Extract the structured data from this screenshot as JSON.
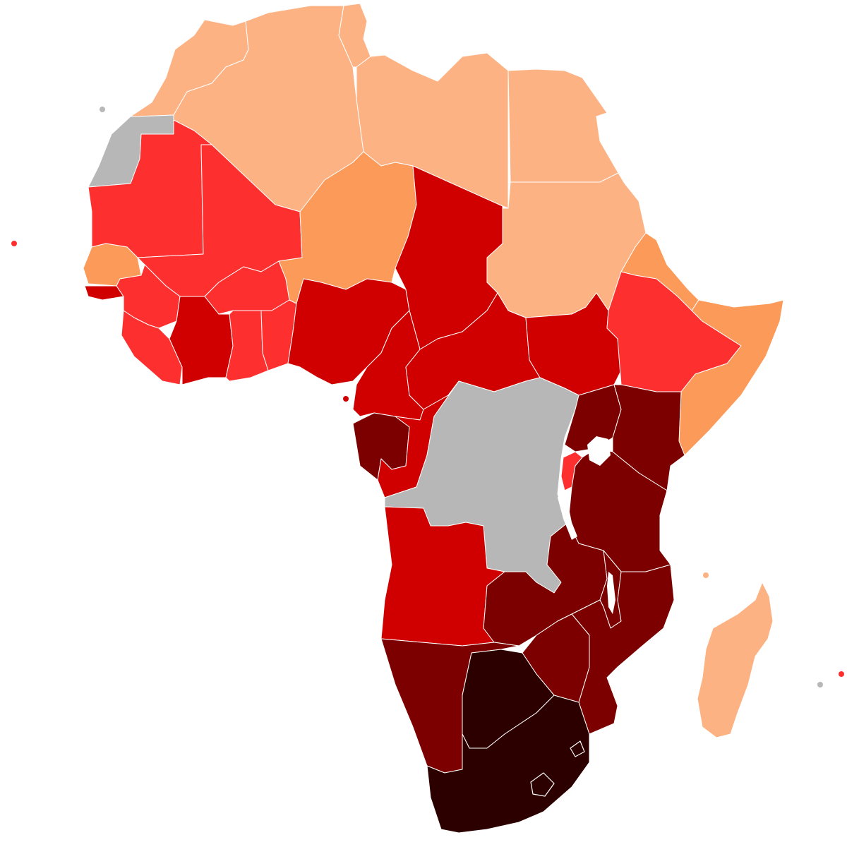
{
  "map": {
    "title": "",
    "region": "Africa",
    "legend": [],
    "palette": {
      "very_low": "#fdb283",
      "low": "#fc9a5a",
      "medium": "#fe2f2f",
      "high": "#d00000",
      "very_high": "#7d0000",
      "highest": "#2d0000",
      "no_data": "#b7b7b7",
      "water": "#ffffff"
    },
    "categories": {
      "morocco": "very_low",
      "algeria": "very_low",
      "tunisia": "very_low",
      "libya": "very_low",
      "egypt": "very_low",
      "sudan": "very_low",
      "madagascar": "very_low",
      "niger": "low",
      "senegal": "low",
      "eritrea": "low",
      "somalia": "low",
      "mauritania": "medium",
      "mali": "medium",
      "burkina-faso": "medium",
      "guinea": "medium",
      "sierra-leone-liberia": "medium",
      "ghana": "medium",
      "togo-benin": "medium",
      "ethiopia": "medium",
      "rwanda-burundi": "medium",
      "chad": "high",
      "nigeria": "high",
      "cameroon": "high",
      "central-african-republic": "high",
      "south-sudan": "high",
      "cote-divoire": "high",
      "congo-equatorial-guinea": "high",
      "angola": "high",
      "guinea-bissau": "high",
      "gabon": "very_high",
      "uganda": "very_high",
      "kenya": "very_high",
      "tanzania": "very_high",
      "zambia": "very_high",
      "zimbabwe": "very_high",
      "mozambique": "very_high",
      "malawi": "very_high",
      "namibia": "very_high",
      "botswana": "highest",
      "south-africa": "highest",
      "western-sahara": "no_data",
      "dr-congo": "no_data"
    }
  }
}
